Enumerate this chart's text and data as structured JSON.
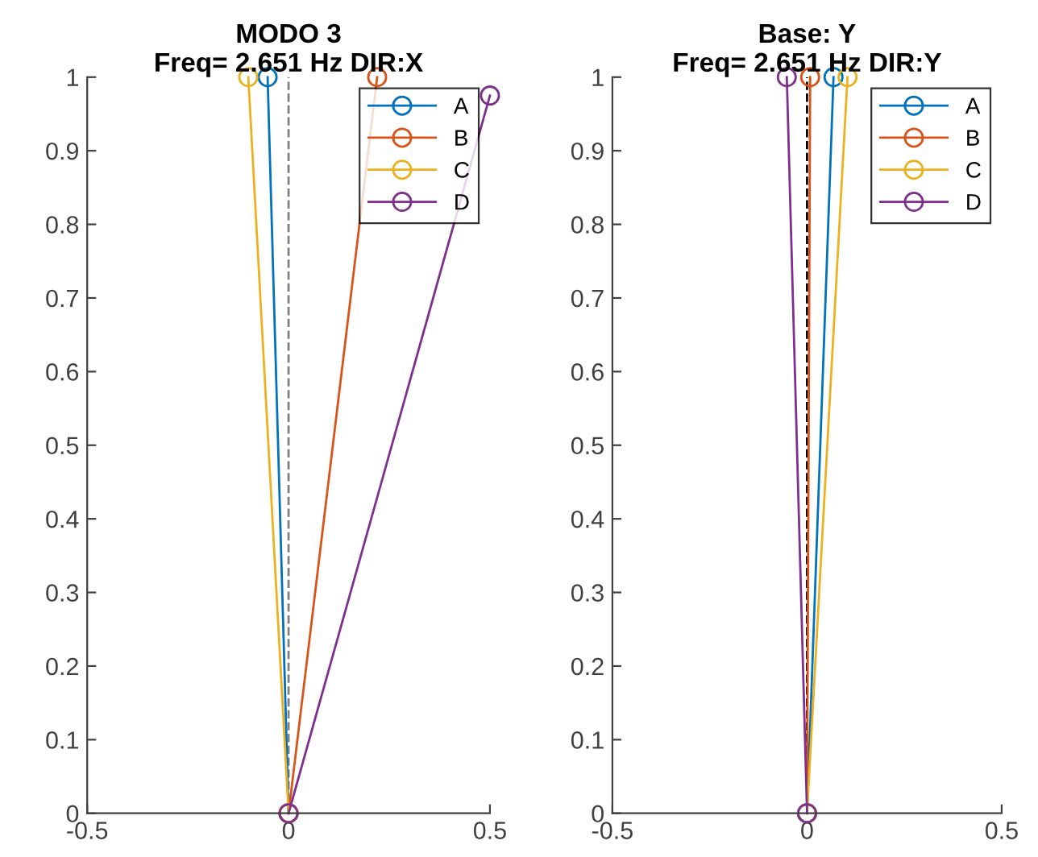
{
  "chart_data": [
    {
      "type": "line",
      "title": "MODO 3",
      "subtitle": "Freq= 2.651 Hz DIR:X",
      "xlim": [
        -0.5,
        0.5
      ],
      "xticks": [
        -0.5,
        0,
        0.5
      ],
      "ylim": [
        0,
        1
      ],
      "yticks": [
        0,
        0.1,
        0.2,
        0.3,
        0.4,
        0.5,
        0.6,
        0.7,
        0.8,
        0.9,
        1
      ],
      "grid": false,
      "legend": "top right",
      "marker": "circle",
      "series": [
        {
          "name": "A",
          "color": "#0072bd",
          "x": [
            0,
            -0.052
          ],
          "values": [
            0,
            1
          ]
        },
        {
          "name": "B",
          "color": "#d95319",
          "x": [
            0,
            0.22
          ],
          "values": [
            0,
            1
          ]
        },
        {
          "name": "C",
          "color": "#edb120",
          "x": [
            0,
            -0.1
          ],
          "values": [
            0,
            1
          ]
        },
        {
          "name": "D",
          "color": "#7e2f8e",
          "x": [
            0,
            0.5
          ],
          "values": [
            0,
            0.975
          ]
        }
      ],
      "ref_lines": [
        {
          "axis": "x",
          "value": 0,
          "color": "#808080",
          "line_style": "dashed"
        }
      ]
    },
    {
      "type": "line",
      "title": "Base: Y",
      "subtitle": "Freq= 2.651 Hz DIR:Y",
      "xlim": [
        -0.5,
        0.5
      ],
      "xticks": [
        -0.5,
        0,
        0.5
      ],
      "ylim": [
        0,
        1
      ],
      "yticks": [
        0,
        0.1,
        0.2,
        0.3,
        0.4,
        0.5,
        0.6,
        0.7,
        0.8,
        0.9,
        1
      ],
      "grid": false,
      "legend": "top right",
      "marker": "circle",
      "series": [
        {
          "name": "A",
          "color": "#0072bd",
          "x": [
            0,
            0.068
          ],
          "values": [
            0,
            1
          ]
        },
        {
          "name": "B",
          "color": "#d95319",
          "x": [
            0,
            0.008
          ],
          "values": [
            0,
            1
          ]
        },
        {
          "name": "C",
          "color": "#edb120",
          "x": [
            0,
            0.104
          ],
          "values": [
            0,
            1
          ]
        },
        {
          "name": "D",
          "color": "#7e2f8e",
          "x": [
            0,
            -0.052
          ],
          "values": [
            0,
            1
          ]
        }
      ],
      "ref_lines": [
        {
          "axis": "x",
          "value": 0,
          "color": "#000000",
          "line_style": "dashed"
        }
      ]
    }
  ]
}
